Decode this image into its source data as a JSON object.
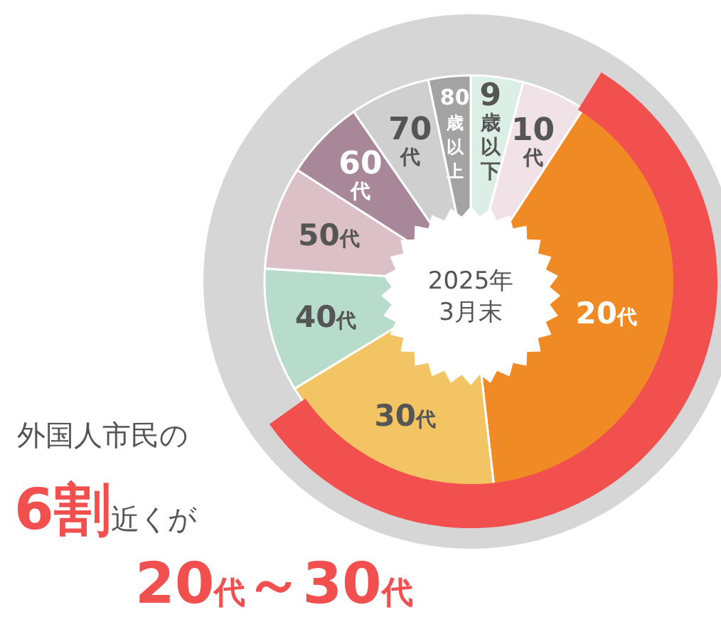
{
  "chart_data": {
    "type": "donut",
    "categories": [
      "9歳以下",
      "10代",
      "20代",
      "30代",
      "40代",
      "50代",
      "60代",
      "70代",
      "80歳以上"
    ],
    "values": [
      4.1,
      5.1,
      39.0,
      18.1,
      9.7,
      8.1,
      6.3,
      6.3,
      3.3
    ],
    "colors": [
      "#dcefe6",
      "#f0e2e6",
      "#f08a24",
      "#f3c463",
      "#b7dccb",
      "#dcc0c8",
      "#a88898",
      "#cfcfcf",
      "#a3a3a3"
    ],
    "annotations": [
      "2025年\n3月末",
      "外国人市民の\n6割近くが\n20代～30代"
    ]
  }
}
